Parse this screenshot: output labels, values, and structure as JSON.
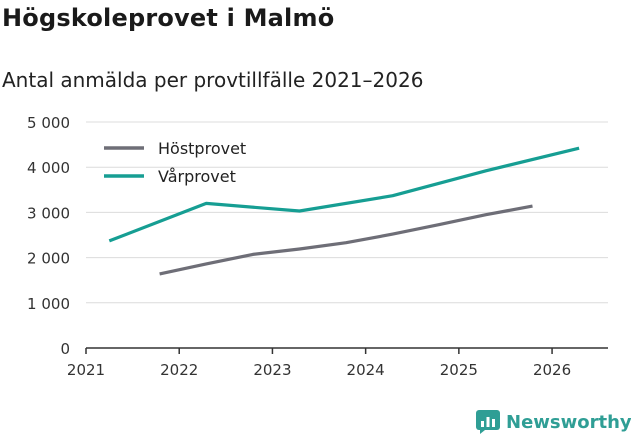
{
  "header": {
    "title": "Högskoleprovet i Malmö",
    "subtitle": "Antal anmälda per provtillfälle 2021–2026"
  },
  "brand": {
    "name": "Newsworthy",
    "color": "#2f9e95"
  },
  "chart_data": {
    "type": "line",
    "title": "Högskoleprovet i Malmö",
    "subtitle": "Antal anmälda per provtillfälle 2021–2026",
    "xlabel": "",
    "ylabel": "",
    "xlim": [
      2021,
      2026.6
    ],
    "ylim": [
      0,
      5000
    ],
    "grid": true,
    "legend_position": "top-left",
    "x_ticks": [
      2021,
      2022,
      2023,
      2024,
      2025,
      2026
    ],
    "x_tick_labels": [
      "2021",
      "2022",
      "2023",
      "2024",
      "2025",
      "2026"
    ],
    "y_ticks": [
      0,
      1000,
      2000,
      3000,
      4000,
      5000
    ],
    "y_tick_labels": [
      "0",
      "1 000",
      "2 000",
      "3 000",
      "4 000",
      "5 000"
    ],
    "series": [
      {
        "name": "Höstprovet",
        "color": "#6e6e77",
        "points": [
          [
            2021.79,
            1640
          ],
          [
            2022.29,
            1860
          ],
          [
            2022.79,
            2070
          ],
          [
            2023.29,
            2190
          ],
          [
            2023.79,
            2330
          ],
          [
            2024.29,
            2520
          ],
          [
            2024.79,
            2730
          ],
          [
            2025.29,
            2950
          ],
          [
            2025.79,
            3140
          ]
        ]
      },
      {
        "name": "Vårprovet",
        "color": "#169e93",
        "points": [
          [
            2021.25,
            2370
          ],
          [
            2022.29,
            3200
          ],
          [
            2023.29,
            3030
          ],
          [
            2024.29,
            3370
          ],
          [
            2025.29,
            3920
          ],
          [
            2026.29,
            4420
          ]
        ]
      }
    ]
  }
}
